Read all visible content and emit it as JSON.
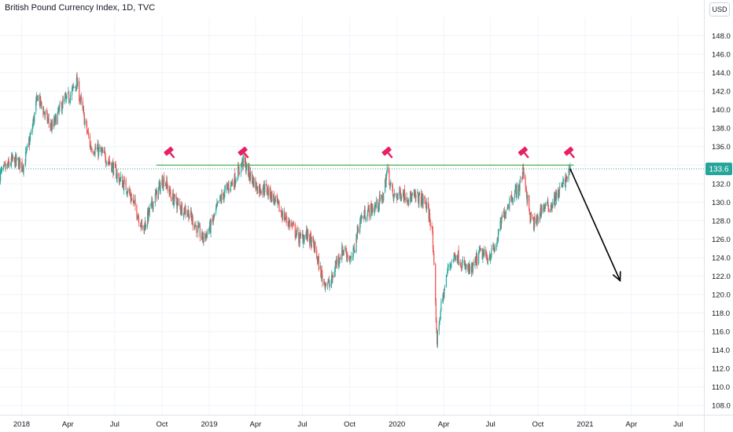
{
  "header": {
    "title": "British Pound Currency Index, 1D, TVC",
    "currency_button": "USD"
  },
  "colors": {
    "up": "#26a69a",
    "down": "#ef5350",
    "resistance": "#4caf50",
    "price_badge": "#26a69a",
    "marker": "#e91e63",
    "arrow": "#000000",
    "grid": "#f0f3fa",
    "axis_text": "#131722"
  },
  "icons": [
    "gavel-icon"
  ],
  "chart_data": {
    "type": "candlestick",
    "title": "British Pound Currency Index, 1D, TVC",
    "ylim": [
      107,
      150
    ],
    "y_ticks": [
      "108.0",
      "110.0",
      "112.0",
      "114.0",
      "116.0",
      "118.0",
      "120.0",
      "122.0",
      "124.0",
      "126.0",
      "128.0",
      "130.0",
      "132.0",
      "134.0",
      "136.0",
      "138.0",
      "140.0",
      "142.0",
      "144.0",
      "146.0",
      "148.0"
    ],
    "x_ticks": [
      "2018",
      "Apr",
      "Jul",
      "Oct",
      "2019",
      "Apr",
      "Jul",
      "Oct",
      "2020",
      "Apr",
      "Jul",
      "Oct",
      "2021",
      "Apr",
      "Jul"
    ],
    "x_tick_dates": [
      "2018-01-01",
      "2018-04-01",
      "2018-07-01",
      "2018-10-01",
      "2019-01-01",
      "2019-04-01",
      "2019-07-01",
      "2019-10-01",
      "2020-01-01",
      "2020-04-01",
      "2020-07-01",
      "2020-10-01",
      "2021-01-01",
      "2021-04-01",
      "2021-07-01"
    ],
    "last_price": "133.6",
    "price_path": [
      [
        "2017-11-20",
        133.0
      ],
      [
        "2017-12-15",
        134.5
      ],
      [
        "2018-01-05",
        134.0
      ],
      [
        "2018-01-20",
        137.5
      ],
      [
        "2018-02-01",
        141.5
      ],
      [
        "2018-02-15",
        139.5
      ],
      [
        "2018-03-01",
        138.0
      ],
      [
        "2018-03-20",
        140.5
      ],
      [
        "2018-04-05",
        141.5
      ],
      [
        "2018-04-18",
        143.0
      ],
      [
        "2018-05-01",
        139.5
      ],
      [
        "2018-05-15",
        136.0
      ],
      [
        "2018-06-01",
        135.5
      ],
      [
        "2018-06-20",
        134.5
      ],
      [
        "2018-07-10",
        132.5
      ],
      [
        "2018-07-25",
        131.5
      ],
      [
        "2018-08-10",
        129.5
      ],
      [
        "2018-08-25",
        127.0
      ],
      [
        "2018-09-10",
        129.5
      ],
      [
        "2018-09-25",
        131.5
      ],
      [
        "2018-10-05",
        132.5
      ],
      [
        "2018-10-20",
        130.5
      ],
      [
        "2018-11-05",
        129.5
      ],
      [
        "2018-11-20",
        129.0
      ],
      [
        "2018-12-05",
        127.5
      ],
      [
        "2018-12-20",
        126.0
      ],
      [
        "2019-01-05",
        127.5
      ],
      [
        "2019-01-20",
        130.0
      ],
      [
        "2019-02-05",
        131.5
      ],
      [
        "2019-02-20",
        132.5
      ],
      [
        "2019-03-08",
        134.5
      ],
      [
        "2019-03-20",
        133.0
      ],
      [
        "2019-04-05",
        131.5
      ],
      [
        "2019-04-20",
        131.5
      ],
      [
        "2019-05-05",
        130.5
      ],
      [
        "2019-05-25",
        128.5
      ],
      [
        "2019-06-10",
        127.5
      ],
      [
        "2019-06-25",
        126.0
      ],
      [
        "2019-07-10",
        126.5
      ],
      [
        "2019-07-25",
        125.0
      ],
      [
        "2019-08-10",
        121.5
      ],
      [
        "2019-08-25",
        121.0
      ],
      [
        "2019-09-05",
        123.5
      ],
      [
        "2019-09-20",
        125.0
      ],
      [
        "2019-10-05",
        123.5
      ],
      [
        "2019-10-20",
        128.0
      ],
      [
        "2019-11-05",
        129.0
      ],
      [
        "2019-11-20",
        129.5
      ],
      [
        "2019-12-05",
        130.5
      ],
      [
        "2019-12-13",
        133.5
      ],
      [
        "2019-12-25",
        130.5
      ],
      [
        "2020-01-10",
        131.0
      ],
      [
        "2020-01-25",
        130.5
      ],
      [
        "2020-02-10",
        130.5
      ],
      [
        "2020-02-25",
        130.0
      ],
      [
        "2020-03-09",
        127.5
      ],
      [
        "2020-03-19",
        115.0
      ],
      [
        "2020-03-25",
        118.0
      ],
      [
        "2020-04-10",
        123.0
      ],
      [
        "2020-04-25",
        124.5
      ],
      [
        "2020-05-10",
        123.0
      ],
      [
        "2020-05-25",
        122.5
      ],
      [
        "2020-06-10",
        124.5
      ],
      [
        "2020-06-25",
        124.0
      ],
      [
        "2020-07-10",
        125.0
      ],
      [
        "2020-07-25",
        128.5
      ],
      [
        "2020-08-10",
        130.5
      ],
      [
        "2020-08-25",
        131.5
      ],
      [
        "2020-09-03",
        133.5
      ],
      [
        "2020-09-15",
        128.5
      ],
      [
        "2020-09-25",
        127.5
      ],
      [
        "2020-10-10",
        129.5
      ],
      [
        "2020-10-25",
        129.5
      ],
      [
        "2020-11-10",
        131.0
      ],
      [
        "2020-11-25",
        132.5
      ],
      [
        "2020-12-03",
        133.6
      ]
    ],
    "resistance_level": 134.0,
    "resistance_range": [
      "2018-09-20",
      "2020-12-10"
    ],
    "last_price_line": 133.6,
    "markers": [
      {
        "date": "2018-10-15",
        "price": 134.6
      },
      {
        "date": "2019-03-08",
        "price": 134.6
      },
      {
        "date": "2019-12-13",
        "price": 134.6
      },
      {
        "date": "2020-09-03",
        "price": 134.6
      },
      {
        "date": "2020-12-01",
        "price": 134.6
      }
    ],
    "arrow": {
      "from": [
        "2020-12-03",
        133.6
      ],
      "to": [
        "2021-03-10",
        121.5
      ]
    }
  }
}
